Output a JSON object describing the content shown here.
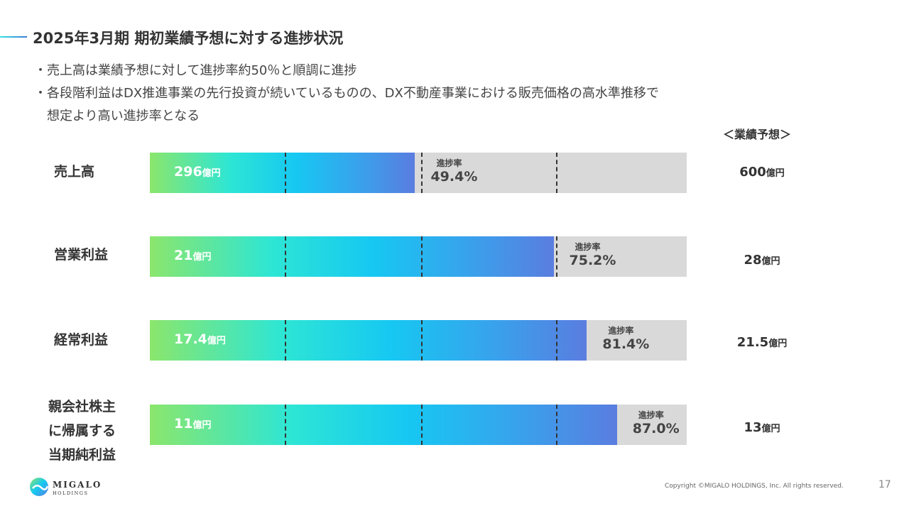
{
  "slide": {
    "title": "2025年3月期 期初業績予想に対する進捗状況",
    "bullets": [
      "・",
      "売上高は業績予想に対して進捗率約50％と順調に進捗",
      "各段階利益はDX推進事業の先行投資が続いているものの、DX不動産事業における販売価格の高水準推移で",
      "想定より高い進捗率となる"
    ],
    "forecast_header": "＜業績予想＞",
    "page_number": "17",
    "copyright": "Copyright ©MIGALO HOLDINGS, Inc. All rights reserved.",
    "logo": {
      "name": "MIGALO",
      "sub": "HOLDINGS"
    }
  },
  "chart_data": {
    "type": "bar",
    "orientation": "horizontal",
    "title": "期初業績予想に対する進捗状況",
    "unit": "億円",
    "rate_label": "進捗率",
    "gridlines": [
      25,
      50,
      75
    ],
    "categories": [
      {
        "label_lines": [
          "売上高"
        ],
        "actual": "296",
        "forecast": "600",
        "rate": "49.4%",
        "rate_value": 49.4
      },
      {
        "label_lines": [
          "営業利益"
        ],
        "actual": "21",
        "forecast": "28",
        "rate": "75.2%",
        "rate_value": 75.2
      },
      {
        "label_lines": [
          "経常利益"
        ],
        "actual": "17.4",
        "forecast": "21.5",
        "rate": "81.4%",
        "rate_value": 81.4
      },
      {
        "label_lines": [
          "親会社株主",
          "に帰属する",
          "当期純利益"
        ],
        "actual": "11",
        "forecast": "13",
        "rate": "87.0%",
        "rate_value": 87.0
      }
    ]
  }
}
